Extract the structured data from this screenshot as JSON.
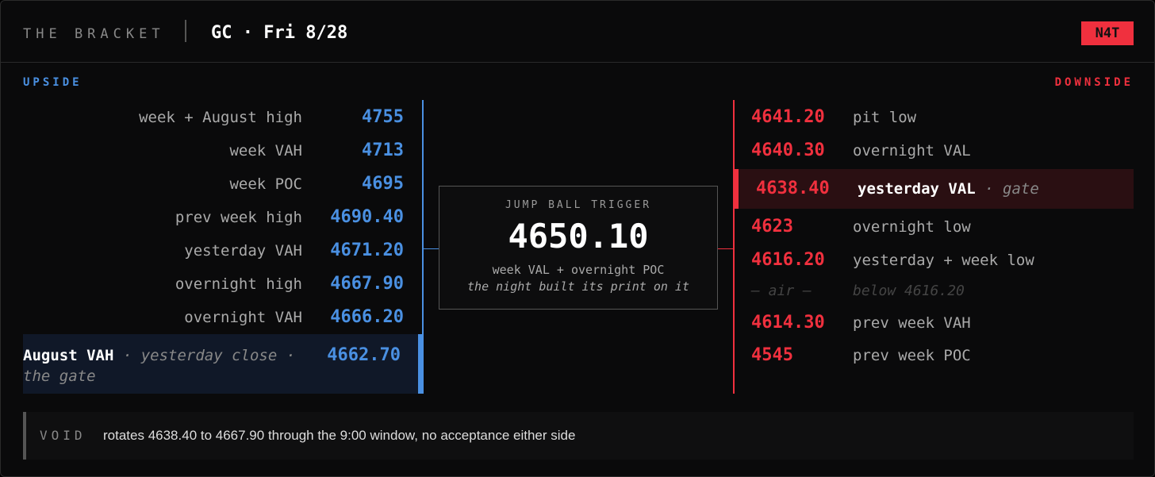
{
  "header": {
    "title": "THE BRACKET",
    "subtitle": "GC · Fri 8/28",
    "badge": "N4T"
  },
  "upside": {
    "label": "UPSIDE",
    "levels": [
      {
        "name": "week + August high",
        "price": "4755"
      },
      {
        "name": "week VAH",
        "price": "4713"
      },
      {
        "name": "week POC",
        "price": "4695"
      },
      {
        "name": "prev week high",
        "price": "4690.40"
      },
      {
        "name": "yesterday VAH",
        "price": "4671.20"
      },
      {
        "name": "overnight high",
        "price": "4667.90"
      },
      {
        "name": "overnight VAH",
        "price": "4666.20"
      }
    ],
    "gate": {
      "name": "August VAH",
      "note": "· yesterday close · the gate",
      "price": "4662.70"
    }
  },
  "trigger": {
    "label": "JUMP BALL TRIGGER",
    "price": "4650.10",
    "line1": "week VAL + overnight POC",
    "line2": "the night built its print on it"
  },
  "downside": {
    "label": "DOWNSIDE",
    "levels": [
      {
        "price": "4641.20",
        "name": "pit low"
      },
      {
        "price": "4640.30",
        "name": "overnight VAL"
      }
    ],
    "gate": {
      "price": "4638.40",
      "name": "yesterday VAL",
      "note": "· gate"
    },
    "lower": [
      {
        "price": "4623",
        "name": "overnight low"
      },
      {
        "price": "4616.20",
        "name": "yesterday + week low"
      }
    ],
    "air": {
      "mark": "— air —",
      "note": "below 4616.20"
    },
    "bottom": [
      {
        "price": "4614.30",
        "name": "prev week VAH"
      },
      {
        "price": "4545",
        "name": "prev week POC"
      }
    ]
  },
  "void": {
    "label": "VOID",
    "text": "rotates 4638.40 to 4667.90 through the 9:00 window, no acceptance either side"
  }
}
